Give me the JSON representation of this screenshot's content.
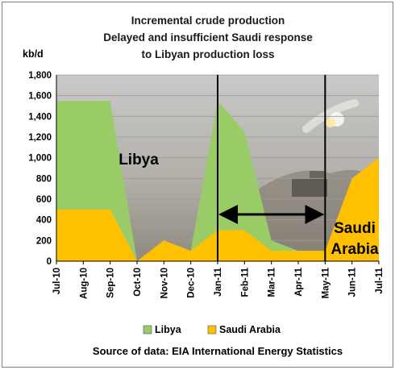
{
  "chart_data": {
    "type": "area",
    "title": [
      "Incremental crude production",
      "Delayed and insufficient  Saudi response",
      "to Libyan production loss"
    ],
    "ylabel": "kb/d",
    "ylim": [
      0,
      1800
    ],
    "yticks": [
      "0",
      "200",
      "400",
      "600",
      "800",
      "1,000",
      "1,200",
      "1,400",
      "1,600",
      "1,800"
    ],
    "categories": [
      "Jul-10",
      "Aug-10",
      "Sep-10",
      "Oct-10",
      "Nov-10",
      "Dec-10",
      "Jan-11",
      "Feb-11",
      "Mar-11",
      "Apr-11",
      "May-11",
      "Jun-11",
      "Jul-11"
    ],
    "series": [
      {
        "name": "Libya",
        "color": "#99cc66",
        "values": [
          1550,
          1550,
          1550,
          0,
          200,
          100,
          1550,
          1250,
          200,
          100,
          100,
          100,
          100
        ]
      },
      {
        "name": "Saudi Arabia",
        "color": "#ffc000",
        "values": [
          500,
          500,
          500,
          0,
          200,
          100,
          300,
          300,
          100,
          100,
          100,
          800,
          1000
        ]
      }
    ],
    "annotations": {
      "libya_label": "Libya",
      "saudi_label_line1": "Saudi",
      "saudi_label_line2": "Arabia"
    },
    "source": "Source of data: EIA International Energy Statistics",
    "grid": true,
    "legend": "bottom"
  }
}
